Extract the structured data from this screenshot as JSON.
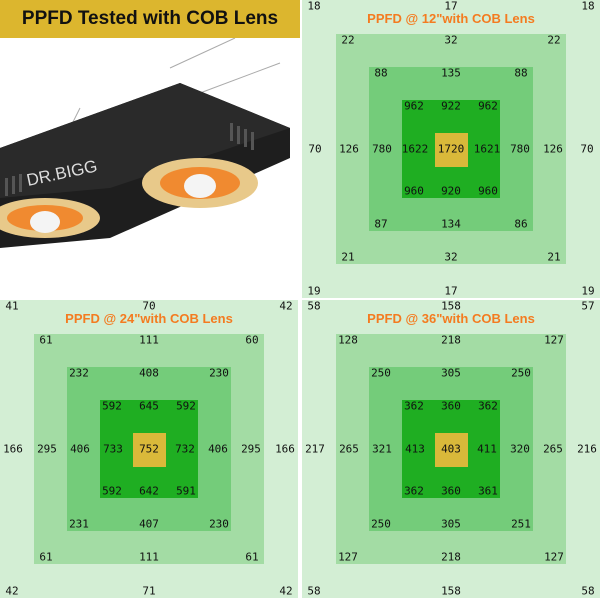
{
  "banner": {
    "title": "PPFD Tested with COB Lens",
    "color": "#dcb62e"
  },
  "product": {
    "brand": "DR.BIGG"
  },
  "colors": {
    "outer": "#d3eed4",
    "ring1": "#a3dca4",
    "ring2": "#74cc7a",
    "ring3": "#1fae22",
    "center": "#d9b93a",
    "title": "#f47b20"
  },
  "panels": [
    {
      "title": "PPFD @ 12\"with COB Lens",
      "outer": [
        "18",
        "17",
        "18",
        "70",
        "70",
        "19",
        "17",
        "19"
      ],
      "ring1": [
        "22",
        "32",
        "22",
        "126",
        "126",
        "21",
        "32",
        "21"
      ],
      "ring2": [
        "88",
        "135",
        "88",
        "780",
        "780",
        "87",
        "134",
        "86"
      ],
      "ring3": [
        "962",
        "922",
        "962",
        "1622",
        "1621",
        "960",
        "920",
        "960"
      ],
      "center": "1720"
    },
    {
      "title": "PPFD @ 24\"with COB Lens",
      "outer": [
        "41",
        "70",
        "42",
        "166",
        "166",
        "42",
        "71",
        "42"
      ],
      "ring1": [
        "61",
        "111",
        "60",
        "295",
        "295",
        "61",
        "111",
        "61"
      ],
      "ring2": [
        "232",
        "408",
        "230",
        "406",
        "406",
        "231",
        "407",
        "230"
      ],
      "ring3": [
        "592",
        "645",
        "592",
        "733",
        "732",
        "592",
        "642",
        "591"
      ],
      "center": "752"
    },
    {
      "title": "PPFD @ 36\"with COB Lens",
      "outer": [
        "58",
        "158",
        "57",
        "217",
        "216",
        "58",
        "158",
        "58"
      ],
      "ring1": [
        "128",
        "218",
        "127",
        "265",
        "265",
        "127",
        "218",
        "127"
      ],
      "ring2": [
        "250",
        "305",
        "250",
        "321",
        "320",
        "250",
        "305",
        "251"
      ],
      "ring3": [
        "362",
        "360",
        "362",
        "413",
        "411",
        "362",
        "360",
        "361"
      ],
      "center": "403"
    }
  ]
}
